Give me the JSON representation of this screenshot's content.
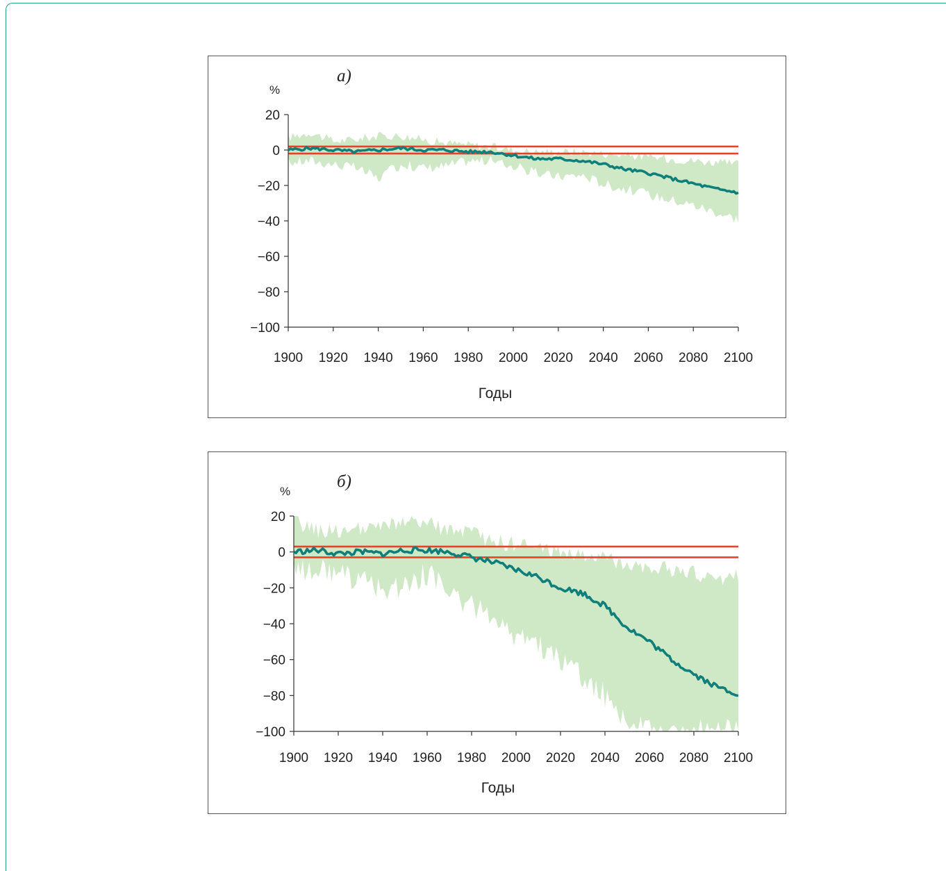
{
  "chart_data": [
    {
      "type": "line",
      "panel_label": "а)",
      "unit": "%",
      "xlabel": "Годы",
      "ylabel": "",
      "xlim": [
        1900,
        2100
      ],
      "ylim": [
        -100,
        20
      ],
      "x_ticks": [
        1900,
        1920,
        1940,
        1960,
        1980,
        2000,
        2020,
        2040,
        2060,
        2080,
        2100
      ],
      "y_ticks": [
        20,
        0,
        -20,
        -40,
        -60,
        -80,
        -100
      ],
      "y_tick_labels": [
        "20",
        "0",
        "−20",
        "−40",
        "−60",
        "−80",
        "−100"
      ],
      "reference_lines": [
        2,
        -2
      ],
      "colors": {
        "mean": "#0e7f7a",
        "band": "#cfe8c6",
        "reference": "#e8412a"
      },
      "series": [
        {
          "role": "mean",
          "x": [
            1900,
            1910,
            1920,
            1930,
            1940,
            1950,
            1960,
            1970,
            1980,
            1990,
            2000,
            2010,
            2020,
            2030,
            2040,
            2050,
            2060,
            2070,
            2080,
            2090,
            2100
          ],
          "y": [
            0,
            1,
            0,
            -1,
            0,
            1,
            0,
            0,
            -1,
            -1,
            -3,
            -5,
            -5,
            -6,
            -8,
            -11,
            -13,
            -16,
            -19,
            -22,
            -24
          ]
        },
        {
          "role": "band",
          "x": [
            1900,
            1910,
            1920,
            1930,
            1940,
            1950,
            1960,
            1970,
            1980,
            1990,
            2000,
            2010,
            2020,
            2030,
            2040,
            2050,
            2060,
            2070,
            2080,
            2090,
            2100
          ],
          "upper": [
            7,
            10,
            5,
            6,
            8,
            8,
            6,
            4,
            3,
            2,
            0,
            -1,
            -1,
            -1,
            -2,
            -3,
            -4,
            -5,
            -6,
            -7,
            -8
          ],
          "lower": [
            -7,
            -6,
            -8,
            -10,
            -16,
            -8,
            -10,
            -9,
            -6,
            -6,
            -9,
            -13,
            -15,
            -14,
            -19,
            -22,
            -25,
            -28,
            -31,
            -35,
            -39
          ]
        }
      ]
    },
    {
      "type": "line",
      "panel_label": "б)",
      "unit": "%",
      "xlabel": "Годы",
      "ylabel": "",
      "xlim": [
        1900,
        2100
      ],
      "ylim": [
        -100,
        20
      ],
      "x_ticks": [
        1900,
        1920,
        1940,
        1960,
        1980,
        2000,
        2020,
        2040,
        2060,
        2080,
        2100
      ],
      "y_ticks": [
        20,
        0,
        -20,
        -40,
        -60,
        -80,
        -100
      ],
      "y_tick_labels": [
        "20",
        "0",
        "−20",
        "−40",
        "−60",
        "−80",
        "−100"
      ],
      "reference_lines": [
        3,
        -3
      ],
      "colors": {
        "mean": "#0e7f7a",
        "band": "#cfe8c6",
        "reference": "#e8412a"
      },
      "series": [
        {
          "role": "mean",
          "x": [
            1900,
            1910,
            1920,
            1930,
            1940,
            1950,
            1960,
            1970,
            1980,
            1990,
            2000,
            2010,
            2020,
            2030,
            2040,
            2050,
            2060,
            2070,
            2080,
            2090,
            2100
          ],
          "y": [
            0,
            1,
            -1,
            0,
            -1,
            1,
            1,
            0,
            -3,
            -6,
            -10,
            -14,
            -20,
            -23,
            -30,
            -42,
            -50,
            -60,
            -68,
            -75,
            -79
          ]
        },
        {
          "role": "band",
          "x": [
            1900,
            1910,
            1920,
            1930,
            1940,
            1950,
            1960,
            1970,
            1980,
            1990,
            2000,
            2010,
            2020,
            2030,
            2040,
            2050,
            2060,
            2070,
            2080,
            2090,
            2100
          ],
          "upper": [
            17,
            12,
            12,
            12,
            14,
            17,
            16,
            12,
            10,
            6,
            4,
            2,
            0,
            -2,
            -4,
            -6,
            -8,
            -10,
            -12,
            -16,
            -12
          ],
          "lower": [
            -10,
            -10,
            -12,
            -16,
            -22,
            -18,
            -12,
            -22,
            -30,
            -35,
            -48,
            -52,
            -60,
            -70,
            -80,
            -95,
            -100,
            -100,
            -100,
            -100,
            -100
          ]
        }
      ]
    }
  ]
}
